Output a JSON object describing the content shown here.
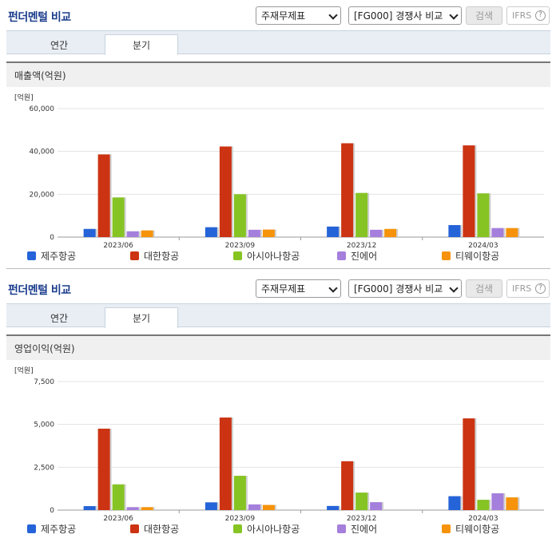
{
  "panels": [
    {
      "title": "펀더멘털 비교",
      "select_statement": "주재무제표",
      "select_compare": "[FG000] 경쟁사 비교",
      "search_label": "검색",
      "ifrs_label": "IFRS",
      "help_label": "?",
      "tabs": [
        {
          "label": "연간"
        },
        {
          "label": "분기"
        }
      ],
      "active_tab": "분기",
      "section_title": "매출액(억원)"
    },
    {
      "title": "펀더멘털 비교",
      "select_statement": "주재무제표",
      "select_compare": "[FG000] 경쟁사 비교",
      "search_label": "검색",
      "ifrs_label": "IFRS",
      "help_label": "?",
      "tabs": [
        {
          "label": "연간"
        },
        {
          "label": "분기"
        }
      ],
      "active_tab": "분기",
      "section_title": "영업이익(억원)"
    }
  ],
  "colors": {
    "제주항공": "#2563d8",
    "대한항공": "#cc3312",
    "아시아나항공": "#86c424",
    "진에어": "#a57fdc",
    "티웨이항공": "#f6930a"
  },
  "chart_data": [
    {
      "type": "bar",
      "unit_label": "[억원]",
      "categories": [
        "2023/06",
        "2023/09",
        "2023/12",
        "2024/03"
      ],
      "ylim": [
        0,
        60000
      ],
      "yticks": [
        "60,000",
        "40,000",
        "20,000",
        "0"
      ],
      "ytick_values": [
        60000,
        40000,
        20000,
        0
      ],
      "series": [
        {
          "name": "제주항공",
          "values": [
            3800,
            4600,
            4900,
            5600
          ]
        },
        {
          "name": "대한항공",
          "values": [
            38600,
            42300,
            43800,
            42800
          ]
        },
        {
          "name": "아시아나항공",
          "values": [
            18500,
            20000,
            20600,
            20400
          ]
        },
        {
          "name": "진에어",
          "values": [
            2700,
            3400,
            3400,
            4200
          ]
        },
        {
          "name": "티웨이항공",
          "values": [
            3100,
            3500,
            3800,
            4200
          ]
        }
      ]
    },
    {
      "type": "bar",
      "unit_label": "[억원]",
      "categories": [
        "2023/06",
        "2023/09",
        "2023/12",
        "2024/03"
      ],
      "ylim": [
        0,
        7500
      ],
      "yticks": [
        "7,500",
        "5,000",
        "2,500",
        "0"
      ],
      "ytick_values": [
        7500,
        5000,
        2500,
        0
      ],
      "series": [
        {
          "name": "제주항공",
          "values": [
            230,
            450,
            240,
            810
          ]
        },
        {
          "name": "대한항공",
          "values": [
            4750,
            5400,
            2850,
            5350
          ]
        },
        {
          "name": "아시아나항공",
          "values": [
            1500,
            2000,
            1020,
            600
          ]
        },
        {
          "name": "진에어",
          "values": [
            170,
            330,
            460,
            980
          ]
        },
        {
          "name": "티웨이항공",
          "values": [
            170,
            300,
            0,
            740
          ]
        }
      ]
    }
  ]
}
